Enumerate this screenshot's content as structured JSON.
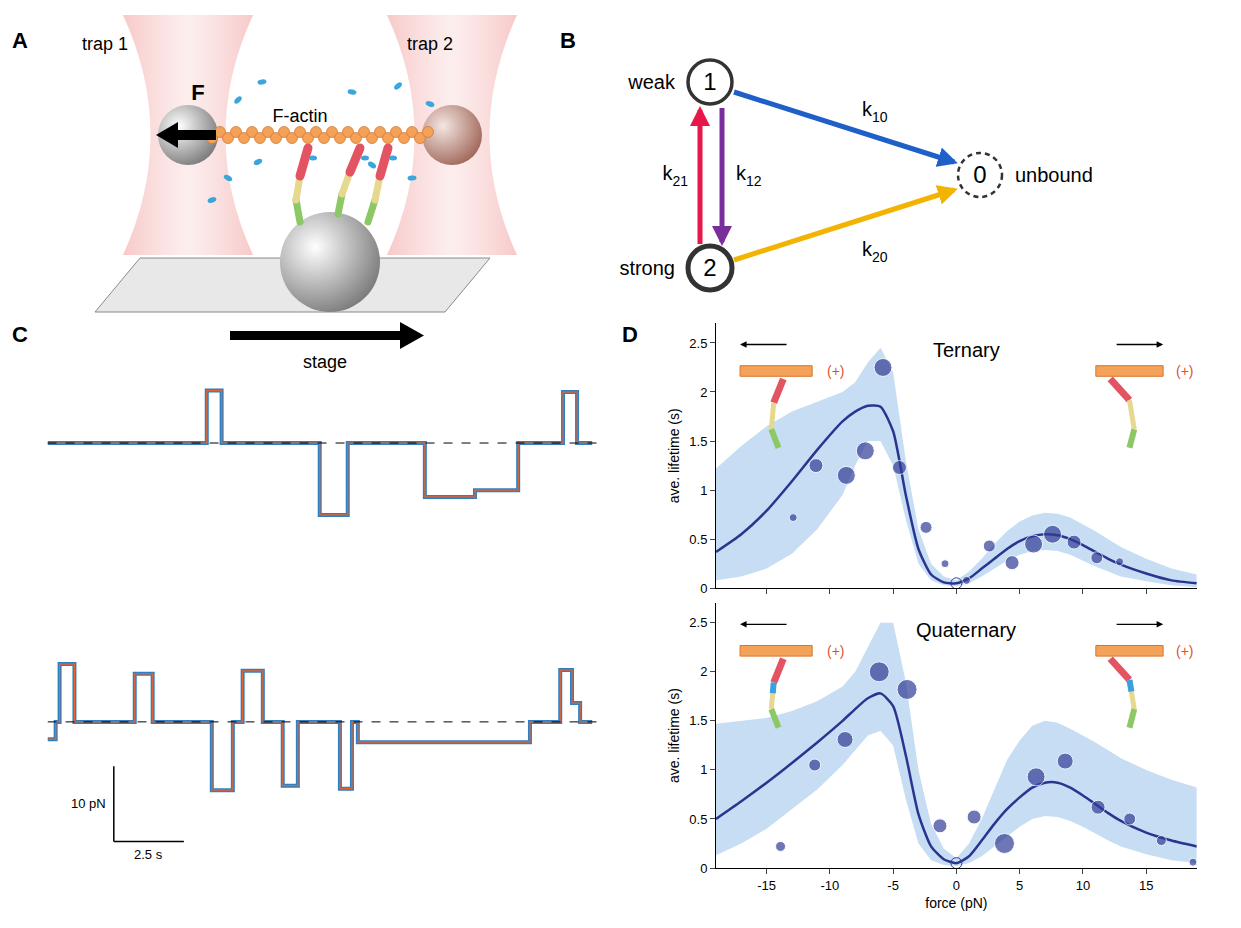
{
  "panel_labels": [
    "A",
    "B",
    "C",
    "D"
  ],
  "diagram_A": {
    "trap_1": "trap 1",
    "trap_2": "trap 2",
    "force": "F",
    "filament": "F-actin",
    "stage": "stage"
  },
  "diagram_B": {
    "states": [
      {
        "id": "1",
        "label": "weak"
      },
      {
        "id": "2",
        "label": "strong"
      },
      {
        "id": "0",
        "label": "unbound"
      }
    ],
    "transitions": [
      {
        "from": "1",
        "to": "0",
        "symbol": "k",
        "subscript": "10",
        "color": "#1f5fc8"
      },
      {
        "from": "2",
        "to": "1",
        "symbol": "k",
        "subscript": "21",
        "color": "#e8174a"
      },
      {
        "from": "1",
        "to": "2",
        "symbol": "k",
        "subscript": "12",
        "color": "#7a2e9c"
      },
      {
        "from": "2",
        "to": "0",
        "symbol": "k",
        "subscript": "20",
        "color": "#f2b400"
      }
    ]
  },
  "chart_data": [
    {
      "type": "line",
      "line_style": "steps",
      "color": "#2f7fc1",
      "tick_labels": false,
      "xlim": [
        0,
        19.7
      ],
      "ylim": [
        -12,
        10
      ],
      "baseline": 0,
      "x": [
        0,
        5.68,
        6.21,
        9.71,
        10.71,
        13.46,
        15.25,
        16.79,
        18.39,
        18.89,
        19.43
      ],
      "values": [
        0,
        7.0,
        0,
        -9.6,
        0,
        -7.2,
        -6.3,
        0,
        6.8,
        0,
        0
      ]
    },
    {
      "type": "line",
      "line_style": "steps",
      "color": "#2f7fc1",
      "tick_labels": false,
      "xlim": [
        0,
        19.7
      ],
      "ylim": [
        -17,
        10
      ],
      "baseline": 0,
      "x": [
        0,
        0.29,
        0.43,
        0.96,
        3.11,
        3.75,
        5.86,
        6.61,
        6.96,
        7.68,
        8.39,
        8.93,
        10.43,
        10.86,
        11.07,
        17.21,
        18.29,
        18.71,
        19.0,
        19.43
      ],
      "values": [
        -2.3,
        0,
        7.7,
        0,
        6.4,
        0,
        -9.1,
        0,
        6.8,
        0,
        -8.5,
        0,
        -8.9,
        0,
        -2.7,
        0,
        6.9,
        2.5,
        0,
        0
      ],
      "scale_bar": {
        "x": 2.5,
        "x_label": "2.5 s",
        "y": 10,
        "y_label": "10 pN"
      }
    },
    {
      "type": "scatter",
      "title": "Ternary",
      "y_label": "ave. lifetime (s)",
      "tick_labels": "y",
      "xlim": [
        -19,
        19
      ],
      "xticks": [
        -15,
        -10,
        -5,
        0,
        5,
        10,
        15
      ],
      "ylim": [
        0,
        2.7
      ],
      "yticks": [
        0,
        0.5,
        1,
        1.5,
        2,
        2.5
      ],
      "annotations": [
        "(+)",
        "(+)"
      ],
      "series": [
        {
          "type": "band",
          "color": "#c6ddf4",
          "x": [
            -19,
            -17,
            -15,
            -13,
            -11,
            -9,
            -8,
            -7,
            -6,
            -5,
            -4,
            -3,
            -2,
            -1,
            0,
            1,
            2,
            3,
            4,
            5,
            6,
            7,
            8,
            9,
            10,
            11,
            12,
            13,
            15,
            17,
            19
          ],
          "lower": [
            0.08,
            0.12,
            0.2,
            0.35,
            0.6,
            0.95,
            1.25,
            1.5,
            1.5,
            1.25,
            0.7,
            0.25,
            0.08,
            0.03,
            0.02,
            0.05,
            0.12,
            0.2,
            0.28,
            0.34,
            0.38,
            0.39,
            0.38,
            0.34,
            0.28,
            0.22,
            0.17,
            0.12,
            0.07,
            0.03,
            0.01
          ],
          "upper": [
            1.22,
            1.45,
            1.65,
            1.8,
            1.9,
            2.0,
            2.1,
            2.3,
            2.45,
            2.2,
            1.3,
            0.6,
            0.25,
            0.12,
            0.08,
            0.17,
            0.3,
            0.45,
            0.58,
            0.68,
            0.74,
            0.77,
            0.76,
            0.72,
            0.65,
            0.58,
            0.5,
            0.42,
            0.3,
            0.2,
            0.14
          ]
        },
        {
          "type": "line",
          "color": "#2a3590",
          "x": [
            -19,
            -17,
            -15,
            -13,
            -11,
            -9,
            -8,
            -7,
            -6,
            -5,
            -4,
            -3,
            -2,
            -1,
            0,
            1,
            2,
            3,
            4,
            5,
            6,
            7,
            8,
            9,
            10,
            11,
            12,
            13,
            15,
            17,
            19
          ],
          "values": [
            0.37,
            0.55,
            0.79,
            1.09,
            1.41,
            1.7,
            1.8,
            1.86,
            1.85,
            1.6,
            0.95,
            0.4,
            0.14,
            0.06,
            0.05,
            0.1,
            0.2,
            0.3,
            0.4,
            0.48,
            0.53,
            0.55,
            0.54,
            0.5,
            0.44,
            0.37,
            0.3,
            0.24,
            0.15,
            0.08,
            0.05
          ]
        },
        {
          "type": "scatter",
          "marker": "circle",
          "color": "#323d96",
          "x": [
            -12.9,
            -11.1,
            -8.7,
            -7.2,
            -5.8,
            -4.5,
            -2.4,
            -0.9,
            0.8,
            2.6,
            4.4,
            6.1,
            7.6,
            9.3,
            11.1,
            12.9
          ],
          "values": [
            0.72,
            1.25,
            1.15,
            1.4,
            2.25,
            1.23,
            0.62,
            0.25,
            0.08,
            0.43,
            0.26,
            0.45,
            0.55,
            0.47,
            0.31,
            0.27
          ],
          "sizes": [
            2,
            3.5,
            4.5,
            4.5,
            4.5,
            3.5,
            3,
            2,
            2,
            3,
            3.5,
            4.5,
            4.5,
            3.5,
            3,
            2
          ]
        },
        {
          "type": "scatter",
          "marker": "open_circle",
          "color": "#323d96",
          "x": [
            0
          ],
          "values": [
            0.05
          ]
        }
      ]
    },
    {
      "type": "scatter",
      "title": "Quaternary",
      "x_label": "force (pN)",
      "y_label": "ave. lifetime (s)",
      "tick_labels": true,
      "xlim": [
        -19,
        19
      ],
      "xticks": [
        -15,
        -10,
        -5,
        0,
        5,
        10,
        15
      ],
      "ylim": [
        0,
        2.7
      ],
      "yticks": [
        0,
        0.5,
        1,
        1.5,
        2,
        2.5
      ],
      "annotations": [
        "(+)",
        "(+)"
      ],
      "series": [
        {
          "type": "band",
          "color": "#c6ddf4",
          "x": [
            -19,
            -17,
            -15,
            -13,
            -11,
            -9,
            -8,
            -7,
            -6,
            -5,
            -4,
            -3,
            -2,
            -1,
            0,
            1,
            2,
            3,
            4,
            5,
            6,
            7,
            8,
            9,
            10,
            11,
            12,
            13,
            15,
            17,
            19
          ],
          "lower": [
            0.13,
            0.25,
            0.4,
            0.6,
            0.8,
            1.05,
            1.2,
            1.35,
            1.4,
            1.25,
            0.7,
            0.25,
            0.08,
            0.03,
            0.02,
            0.05,
            0.12,
            0.22,
            0.32,
            0.42,
            0.5,
            0.53,
            0.52,
            0.48,
            0.42,
            0.35,
            0.28,
            0.22,
            0.14,
            0.08,
            0.05
          ],
          "upper": [
            1.47,
            1.5,
            1.53,
            1.6,
            1.7,
            1.85,
            2.0,
            2.25,
            2.5,
            2.5,
            1.9,
            1.0,
            0.45,
            0.2,
            0.1,
            0.25,
            0.5,
            0.8,
            1.1,
            1.3,
            1.45,
            1.5,
            1.48,
            1.42,
            1.35,
            1.28,
            1.2,
            1.12,
            1.0,
            0.9,
            0.82
          ]
        },
        {
          "type": "line",
          "color": "#2a3590",
          "x": [
            -19,
            -17,
            -15,
            -13,
            -11,
            -9,
            -8,
            -7,
            -6,
            -5,
            -4,
            -3,
            -2,
            -1,
            0,
            1,
            2,
            3,
            4,
            5,
            6,
            7,
            8,
            9,
            10,
            11,
            12,
            13,
            15,
            17,
            19
          ],
          "values": [
            0.5,
            0.68,
            0.87,
            1.07,
            1.28,
            1.5,
            1.62,
            1.73,
            1.78,
            1.65,
            1.15,
            0.55,
            0.22,
            0.09,
            0.05,
            0.12,
            0.28,
            0.45,
            0.6,
            0.72,
            0.82,
            0.87,
            0.87,
            0.82,
            0.74,
            0.65,
            0.56,
            0.48,
            0.36,
            0.28,
            0.22
          ]
        },
        {
          "type": "scatter",
          "marker": "circle",
          "color": "#323d96",
          "x": [
            -13.9,
            -11.2,
            -8.8,
            -6.1,
            -3.9,
            -1.3,
            1.4,
            3.8,
            6.3,
            8.6,
            11.2,
            13.7,
            16.2,
            18.7
          ],
          "values": [
            0.22,
            1.05,
            1.31,
            2.0,
            1.82,
            0.43,
            0.52,
            0.25,
            0.93,
            1.09,
            0.62,
            0.5,
            0.28,
            0.06
          ],
          "sizes": [
            2.5,
            3,
            4,
            5,
            5,
            3.5,
            3.5,
            5,
            4.5,
            4,
            3.5,
            3,
            2.5,
            2
          ]
        },
        {
          "type": "scatter",
          "marker": "open_circle",
          "color": "#323d96",
          "x": [
            0
          ],
          "values": [
            0.05
          ]
        }
      ]
    }
  ]
}
